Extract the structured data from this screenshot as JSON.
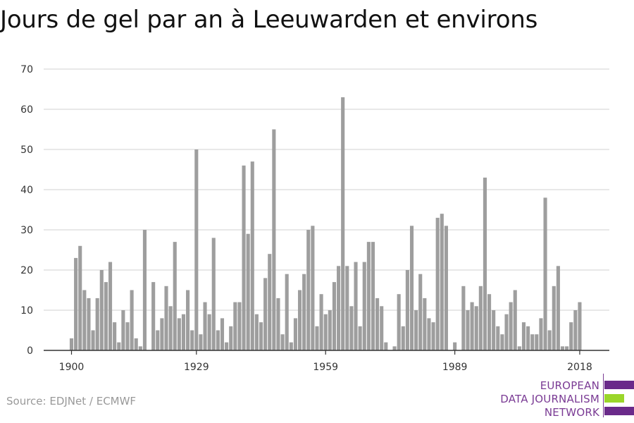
{
  "title": "Jours de gel par an à Leeuwarden et environs",
  "source": "Source: EDJNet / ECMWF",
  "logo": {
    "lines": [
      "EUROPEAN",
      "DATA JOURNALISM",
      "NETWORK"
    ],
    "colors": {
      "purple": "#6a2a8a",
      "green": "#9ad62a"
    }
  },
  "colors": {
    "bar": "#9e9e9e",
    "grid": "#d9d9d9",
    "axis": "#333333"
  },
  "chart_data": {
    "type": "bar",
    "title": "Jours de gel par an à Leeuwarden et environs",
    "xlabel": "",
    "ylabel": "",
    "ylim": [
      0,
      70
    ],
    "y_ticks": [
      0,
      10,
      20,
      30,
      40,
      50,
      60,
      70
    ],
    "x_ticks": [
      1900,
      1929,
      1959,
      1989,
      2018
    ],
    "grid": true,
    "categories": [
      1900,
      1901,
      1902,
      1903,
      1904,
      1905,
      1906,
      1907,
      1908,
      1909,
      1910,
      1911,
      1912,
      1913,
      1914,
      1915,
      1916,
      1917,
      1918,
      1919,
      1920,
      1921,
      1922,
      1923,
      1924,
      1925,
      1926,
      1927,
      1928,
      1929,
      1930,
      1931,
      1932,
      1933,
      1934,
      1935,
      1936,
      1937,
      1938,
      1939,
      1940,
      1941,
      1942,
      1943,
      1944,
      1945,
      1946,
      1947,
      1948,
      1949,
      1950,
      1951,
      1952,
      1953,
      1954,
      1955,
      1956,
      1957,
      1958,
      1959,
      1960,
      1961,
      1962,
      1963,
      1964,
      1965,
      1966,
      1967,
      1968,
      1969,
      1970,
      1971,
      1972,
      1973,
      1974,
      1975,
      1976,
      1977,
      1978,
      1979,
      1980,
      1981,
      1982,
      1983,
      1984,
      1985,
      1986,
      1987,
      1988,
      1989,
      1990,
      1991,
      1992,
      1993,
      1994,
      1995,
      1996,
      1997,
      1998,
      1999,
      2000,
      2001,
      2002,
      2003,
      2004,
      2005,
      2006,
      2007,
      2008,
      2009,
      2010,
      2011,
      2012,
      2013,
      2014,
      2015,
      2016,
      2017,
      2018
    ],
    "values": [
      3,
      23,
      26,
      15,
      13,
      5,
      13,
      20,
      17,
      22,
      7,
      2,
      10,
      7,
      15,
      3,
      1,
      30,
      0,
      17,
      5,
      8,
      16,
      11,
      27,
      8,
      9,
      15,
      5,
      50,
      4,
      12,
      9,
      28,
      5,
      8,
      2,
      6,
      12,
      12,
      46,
      29,
      47,
      9,
      7,
      18,
      24,
      55,
      13,
      4,
      19,
      2,
      8,
      15,
      19,
      30,
      31,
      6,
      14,
      9,
      10,
      17,
      21,
      63,
      21,
      11,
      22,
      6,
      22,
      27,
      27,
      13,
      11,
      2,
      0,
      1,
      14,
      6,
      20,
      31,
      10,
      19,
      13,
      8,
      7,
      33,
      34,
      31,
      0,
      2,
      0,
      16,
      10,
      12,
      11,
      16,
      43,
      14,
      10,
      6,
      4,
      9,
      12,
      15,
      1,
      7,
      6,
      4,
      4,
      8,
      38,
      5,
      16,
      21,
      1,
      1,
      7,
      10,
      12
    ]
  }
}
